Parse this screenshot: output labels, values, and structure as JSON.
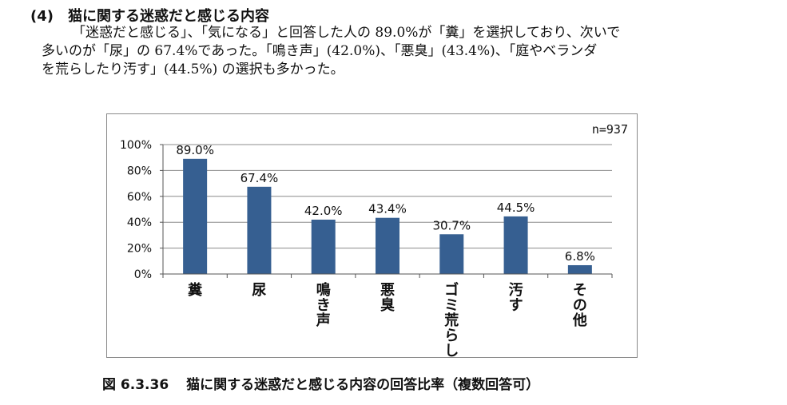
{
  "section": {
    "number": "(4)",
    "title": "猫に関する迷惑だと感じる内容"
  },
  "paragraph": {
    "lines": [
      "「迷惑だと感じる」、「気になる」と回答した人の 89.0%が「糞」を選択しており、次いで",
      "多いのが「尿」の 67.4%であった。「鳴き声」(42.0%)、「悪臭」(43.4%)、「庭やベランダ",
      "を荒らしたり汚す」(44.5%) の選択も多かった。"
    ]
  },
  "chart_data": {
    "type": "bar",
    "title": "",
    "note": "n=937",
    "categories": [
      "糞",
      "尿",
      "鳴き声",
      "悪臭",
      "ゴミ荒らし",
      "汚す",
      "その他"
    ],
    "values": [
      89.0,
      67.4,
      42.0,
      43.4,
      30.7,
      44.5,
      6.8
    ],
    "value_labels": [
      "89.0%",
      "67.4%",
      "42.0%",
      "43.4%",
      "30.7%",
      "44.5%",
      "6.8%"
    ],
    "yticks": [
      "0%",
      "20%",
      "40%",
      "60%",
      "80%",
      "100%"
    ],
    "ylim": [
      0,
      100
    ],
    "xlabel": "",
    "ylabel": "",
    "grid": true,
    "bar_color": "#365f91",
    "grid_color": "#8c8c8c"
  },
  "caption": {
    "figure": "図 6.3.36",
    "text": "猫に関する迷惑だと感じる内容の回答比率（複数回答可）"
  }
}
